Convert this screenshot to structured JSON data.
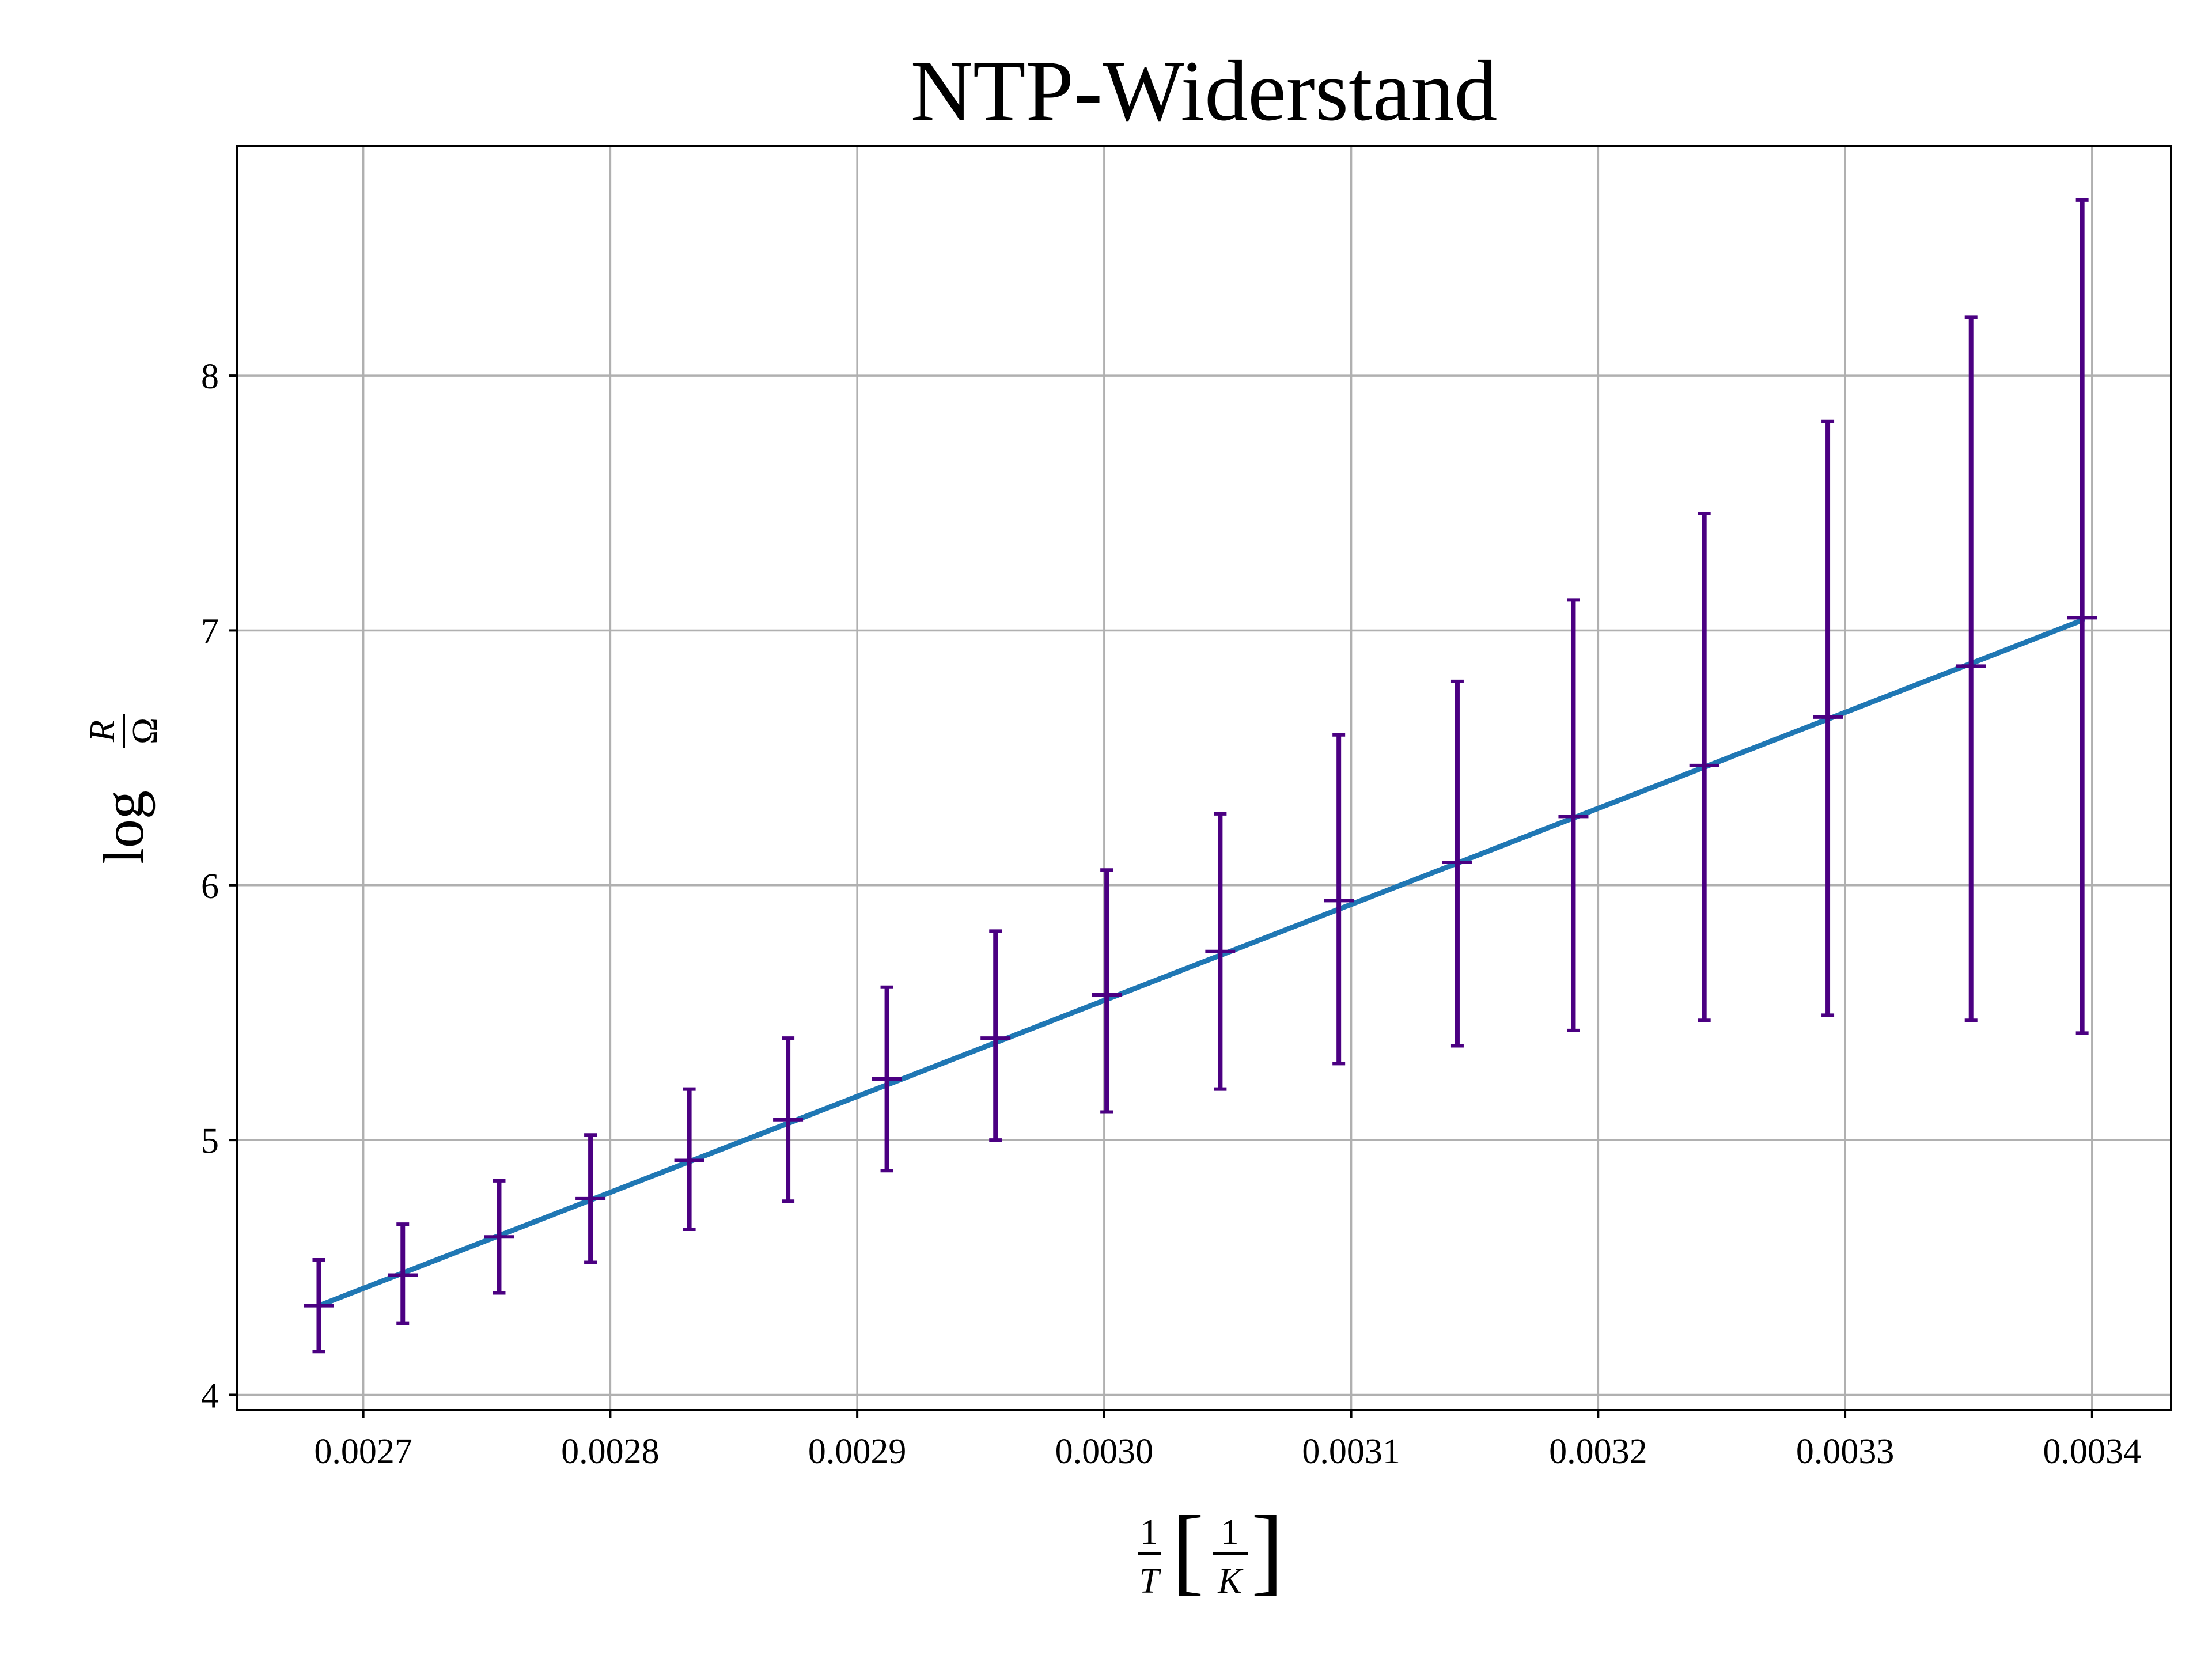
{
  "chart_data": {
    "type": "scatter",
    "title": "NTP-Widerstand",
    "xlabel": {
      "frac1_num": "1",
      "frac1_den": "T",
      "frac2_num": "1",
      "frac2_den": "K"
    },
    "ylabel": {
      "prefix": "log",
      "num": "R",
      "den": "Ω"
    },
    "xlim": [
      0.002649,
      0.003432
    ],
    "ylim": [
      3.94,
      8.9
    ],
    "xticks": [
      0.0027,
      0.0028,
      0.0029,
      0.003,
      0.0031,
      0.0032,
      0.0033,
      0.0034
    ],
    "xtick_labels": [
      "0.0027",
      "0.0028",
      "0.0029",
      "0.0030",
      "0.0031",
      "0.0032",
      "0.0033",
      "0.0034"
    ],
    "yticks": [
      4,
      5,
      6,
      7,
      8
    ],
    "ytick_labels": [
      "4",
      "5",
      "6",
      "7",
      "8"
    ],
    "grid": true,
    "series": [
      {
        "kind": "errorbar",
        "color": "#4b0082",
        "points": [
          {
            "x": 0.002682,
            "y": 4.35,
            "ylow": 4.17,
            "yhigh": 4.53
          },
          {
            "x": 0.002716,
            "y": 4.47,
            "ylow": 4.28,
            "yhigh": 4.67
          },
          {
            "x": 0.002755,
            "y": 4.62,
            "ylow": 4.4,
            "yhigh": 4.84
          },
          {
            "x": 0.002792,
            "y": 4.77,
            "ylow": 4.52,
            "yhigh": 5.02
          },
          {
            "x": 0.002832,
            "y": 4.92,
            "ylow": 4.65,
            "yhigh": 5.2
          },
          {
            "x": 0.002872,
            "y": 5.08,
            "ylow": 4.76,
            "yhigh": 5.4
          },
          {
            "x": 0.002912,
            "y": 5.24,
            "ylow": 4.88,
            "yhigh": 5.6
          },
          {
            "x": 0.002956,
            "y": 5.4,
            "ylow": 5.0,
            "yhigh": 5.82
          },
          {
            "x": 0.003001,
            "y": 5.57,
            "ylow": 5.11,
            "yhigh": 6.06
          },
          {
            "x": 0.003047,
            "y": 5.74,
            "ylow": 5.2,
            "yhigh": 6.28
          },
          {
            "x": 0.003095,
            "y": 5.94,
            "ylow": 5.3,
            "yhigh": 6.59
          },
          {
            "x": 0.003143,
            "y": 6.09,
            "ylow": 5.37,
            "yhigh": 6.8
          },
          {
            "x": 0.00319,
            "y": 6.27,
            "ylow": 5.43,
            "yhigh": 7.12
          },
          {
            "x": 0.003243,
            "y": 6.47,
            "ylow": 5.47,
            "yhigh": 7.46
          },
          {
            "x": 0.003293,
            "y": 6.66,
            "ylow": 5.49,
            "yhigh": 7.82
          },
          {
            "x": 0.003351,
            "y": 6.86,
            "ylow": 5.47,
            "yhigh": 8.23
          },
          {
            "x": 0.003396,
            "y": 7.05,
            "ylow": 5.42,
            "yhigh": 8.69
          }
        ]
      },
      {
        "kind": "line",
        "color": "#1f77b4",
        "x": [
          0.002682,
          0.003396
        ],
        "y": [
          4.35,
          7.04
        ]
      }
    ]
  }
}
